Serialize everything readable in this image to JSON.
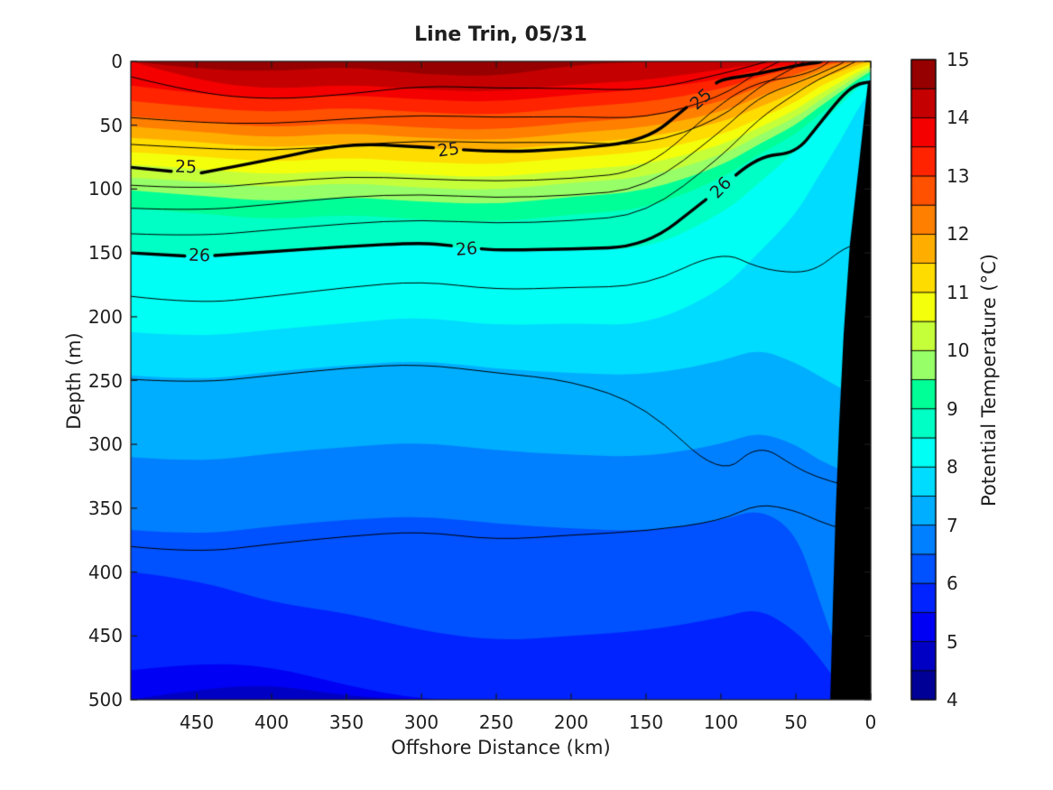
{
  "title": "Line Trin, 05/31",
  "axes": {
    "xlabel": "Offshore Distance (km)",
    "ylabel": "Depth (m)",
    "x_ticks": [
      450,
      400,
      350,
      300,
      250,
      200,
      150,
      100,
      50,
      0
    ],
    "y_ticks": [
      0,
      50,
      100,
      150,
      200,
      250,
      300,
      350,
      400,
      450,
      500
    ],
    "xlim": [
      494,
      0
    ],
    "ylim": [
      0,
      500
    ],
    "x_reversed": true,
    "axis_color": "#1a1a1a"
  },
  "colorbar": {
    "label": "Potential Temperature (°C)",
    "ticks": [
      15,
      14,
      13,
      12,
      11,
      10,
      9,
      8,
      7,
      6,
      5,
      4
    ],
    "min": 4,
    "max": 15,
    "band_step": 0.5,
    "band_colors": [
      "#000097",
      "#0000C5",
      "#0000F4",
      "#0023FF",
      "#0051FF",
      "#0080FF",
      "#00AEFF",
      "#00DCFF",
      "#00FFF4",
      "#00FFC5",
      "#00FF97",
      "#97FF68",
      "#C5FF3A",
      "#F4FF0B",
      "#FFDC00",
      "#FFAE00",
      "#FF8000",
      "#FF5100",
      "#FF2300",
      "#F40000",
      "#C50000",
      "#970000"
    ]
  },
  "chart_data": {
    "type": "filled_contour_section",
    "colormap": "jet",
    "x_km": [
      494,
      450,
      400,
      350,
      300,
      250,
      200,
      150,
      100,
      75,
      50,
      35,
      20,
      10,
      0
    ],
    "depth_range_m": [
      0,
      500
    ],
    "temperature_levels_c": [
      4.5,
      5,
      5.5,
      6,
      6.5,
      7,
      7.5,
      8,
      8.5,
      9,
      9.5,
      10,
      10.5,
      11,
      11.5,
      12,
      12.5,
      13,
      13.5,
      14,
      14.5
    ],
    "isotherm_depths_m": [
      [
        500,
        500,
        500,
        500,
        500,
        500,
        500,
        500,
        500,
        500,
        500,
        500,
        500,
        500,
        500
      ],
      [
        500,
        492,
        488,
        497,
        500,
        500,
        500,
        500,
        500,
        500,
        500,
        500,
        500,
        500,
        500
      ],
      [
        477,
        471,
        474,
        489,
        500,
        500,
        500,
        500,
        500,
        500,
        500,
        500,
        500,
        500,
        500
      ],
      [
        400,
        406,
        424,
        432,
        446,
        454,
        450,
        446,
        436,
        428,
        446,
        466,
        490,
        500,
        500
      ],
      [
        367,
        371,
        364,
        359,
        356,
        362,
        366,
        368,
        360,
        350,
        368,
        420,
        470,
        495,
        500
      ],
      [
        310,
        314,
        307,
        302,
        298,
        305,
        308,
        310,
        300,
        290,
        300,
        312,
        320,
        324,
        326
      ],
      [
        246,
        250,
        243,
        238,
        234,
        241,
        244,
        246,
        235,
        225,
        236,
        246,
        256,
        262,
        266
      ],
      [
        212,
        216,
        210,
        205,
        200,
        207,
        205,
        207,
        180,
        150,
        120,
        90,
        62,
        40,
        22
      ],
      [
        150,
        153,
        150,
        146,
        143,
        149,
        146,
        148,
        120,
        96,
        70,
        50,
        34,
        22,
        12
      ],
      [
        115,
        119,
        124,
        120,
        124,
        126,
        120,
        116,
        92,
        73,
        57,
        42,
        29,
        18,
        10
      ],
      [
        101,
        105,
        110,
        106,
        110,
        112,
        106,
        102,
        82,
        65,
        50,
        36,
        24,
        15,
        8
      ],
      [
        91,
        94,
        99,
        95,
        99,
        101,
        95,
        91,
        74,
        58,
        44,
        31,
        20,
        12,
        6
      ],
      [
        81,
        84,
        89,
        85,
        89,
        91,
        85,
        81,
        66,
        52,
        38,
        26,
        16,
        9,
        4
      ],
      [
        71,
        74,
        79,
        75,
        79,
        81,
        75,
        71,
        58,
        45,
        32,
        20,
        12,
        6,
        2
      ],
      [
        60,
        63,
        68,
        64,
        68,
        70,
        64,
        60,
        48,
        36,
        24,
        14,
        8,
        3,
        0
      ],
      [
        51,
        55,
        60,
        56,
        60,
        62,
        56,
        52,
        40,
        28,
        16,
        8,
        3,
        1,
        0
      ],
      [
        43,
        47,
        52,
        48,
        52,
        54,
        48,
        44,
        32,
        20,
        10,
        4,
        1,
        0,
        0
      ],
      [
        31,
        36,
        40,
        36,
        40,
        42,
        36,
        32,
        22,
        12,
        5,
        2,
        0,
        0,
        0
      ],
      [
        19,
        25,
        30,
        26,
        30,
        32,
        26,
        22,
        14,
        6,
        2,
        0,
        0,
        0,
        0
      ],
      [
        0,
        15,
        22,
        18,
        22,
        24,
        18,
        15,
        6,
        2,
        0,
        0,
        0,
        0,
        0
      ],
      [
        0,
        6,
        8,
        4,
        10,
        12,
        3,
        0,
        0,
        0,
        0,
        0,
        0,
        0,
        0
      ]
    ],
    "density_contours": [
      {
        "value": 24.25,
        "thick": false,
        "depths_m": [
          12,
          25,
          30,
          26,
          19,
          21,
          21,
          23,
          10,
          2,
          -6,
          -6,
          -6,
          -6,
          -6
        ]
      },
      {
        "value": 24.5,
        "thick": false,
        "depths_m": [
          44,
          48,
          49,
          45,
          42,
          44,
          43,
          45,
          28,
          8,
          -6,
          -6,
          -6,
          -6,
          -6
        ]
      },
      {
        "value": 24.75,
        "thick": false,
        "depths_m": [
          65,
          68,
          70,
          66,
          62,
          64,
          63,
          66,
          45,
          20,
          4,
          -6,
          -6,
          -6,
          -6
        ]
      },
      {
        "value": 25,
        "thick": true,
        "depths_m": [
          83,
          88,
          77,
          64,
          67,
          71,
          69,
          62,
          14,
          10,
          3,
          1,
          -6,
          -6,
          -6
        ]
      },
      {
        "value": 25.25,
        "thick": false,
        "depths_m": [
          97,
          100,
          95,
          90,
          92,
          94,
          92,
          86,
          32,
          16,
          12,
          6,
          -6,
          -6,
          -6
        ]
      },
      {
        "value": 25.5,
        "thick": false,
        "depths_m": [
          115,
          117,
          112,
          106,
          104,
          107,
          105,
          100,
          55,
          28,
          17,
          10,
          2,
          -6,
          -6
        ]
      },
      {
        "value": 25.75,
        "thick": false,
        "depths_m": [
          135,
          137,
          132,
          127,
          124,
          127,
          125,
          120,
          75,
          45,
          25,
          14,
          6,
          0,
          -6
        ]
      },
      {
        "value": 26,
        "thick": true,
        "depths_m": [
          150,
          153,
          149,
          145,
          142,
          148,
          147,
          145,
          99,
          74,
          72,
          50,
          28,
          18,
          16
        ]
      },
      {
        "value": 26.25,
        "thick": false,
        "depths_m": [
          184,
          190,
          184,
          177,
          172,
          179,
          177,
          176,
          148,
          162,
          166,
          162,
          148,
          143,
          140
        ]
      },
      {
        "value": 26.5,
        "thick": false,
        "depths_m": [
          249,
          252,
          246,
          240,
          237,
          244,
          250,
          270,
          326,
          299,
          318,
          326,
          331,
          335,
          335
        ]
      },
      {
        "value": 26.75,
        "thick": false,
        "depths_m": [
          380,
          385,
          378,
          372,
          368,
          375,
          371,
          368,
          360,
          346,
          352,
          360,
          366,
          368,
          368
        ]
      }
    ],
    "contour_labels": [
      {
        "text": "25",
        "value": 25,
        "km": 457,
        "depth_m": 83,
        "rot": 2
      },
      {
        "text": "25",
        "value": 25,
        "km": 282,
        "depth_m": 69,
        "rot": -8
      },
      {
        "text": "25",
        "value": 25,
        "km": 113,
        "depth_m": 30,
        "rot": -42
      },
      {
        "text": "26",
        "value": 26,
        "km": 448,
        "depth_m": 152,
        "rot": 2
      },
      {
        "text": "26",
        "value": 26,
        "km": 270,
        "depth_m": 147,
        "rot": -5
      },
      {
        "text": "26",
        "value": 26,
        "km": 100,
        "depth_m": 99,
        "rot": -46
      }
    ],
    "seafloor_km_depth": [
      [
        1.8,
        16
      ],
      [
        7.8,
        80
      ],
      [
        13.9,
        143
      ],
      [
        18.1,
        214
      ],
      [
        21.1,
        285
      ],
      [
        23.5,
        356
      ],
      [
        25.3,
        427
      ],
      [
        27.1,
        502
      ]
    ],
    "seafloor_color": "#000000",
    "contour_line_color": "#000000"
  }
}
